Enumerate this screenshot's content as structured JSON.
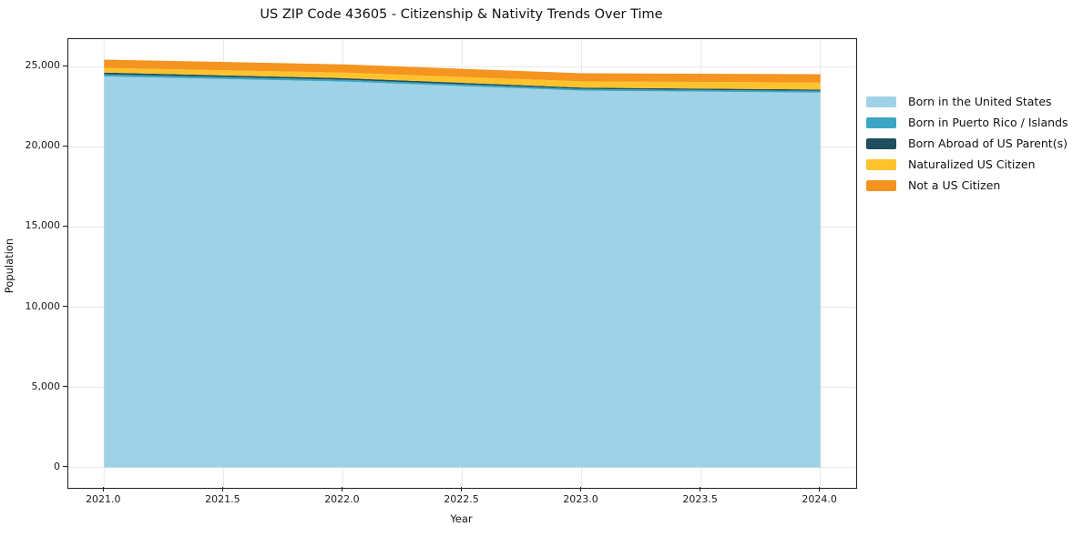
{
  "chart_data": {
    "type": "area",
    "stacked": true,
    "title": "US ZIP Code 43605 - Citizenship & Nativity Trends Over Time",
    "xlabel": "Year",
    "ylabel": "Population",
    "x": [
      2021,
      2022,
      2023,
      2024
    ],
    "series": [
      {
        "name": "Born in the United States",
        "color": "#9fd2e7",
        "values": [
          24400,
          24080,
          23510,
          23390
        ]
      },
      {
        "name": "Born in Puerto Rico / Islands",
        "color": "#3aa6c3",
        "values": [
          130,
          115,
          110,
          110
        ]
      },
      {
        "name": "Born Abroad of US Parent(s)",
        "color": "#1f4e5e",
        "values": [
          115,
          100,
          85,
          80
        ]
      },
      {
        "name": "Naturalized US Citizen",
        "color": "#fcc32d",
        "values": [
          290,
          345,
          385,
          440
        ]
      },
      {
        "name": "Not a US Citizen",
        "color": "#f5941f",
        "values": [
          515,
          515,
          510,
          520
        ]
      }
    ],
    "xlim": [
      2020.85,
      2024.15
    ],
    "ylim": [
      -1273,
      26727
    ],
    "xticks": {
      "values": [
        2021.0,
        2021.5,
        2022.0,
        2022.5,
        2023.0,
        2023.5,
        2024.0
      ],
      "labels": [
        "2021.0",
        "2021.5",
        "2022.0",
        "2022.5",
        "2023.0",
        "2023.5",
        "2024.0"
      ]
    },
    "yticks": {
      "values": [
        0,
        5000,
        10000,
        15000,
        20000,
        25000
      ],
      "labels": [
        "0",
        "5,000",
        "10,000",
        "15,000",
        "20,000",
        "25,000"
      ]
    },
    "grid": true,
    "grid_color": "#e8e8e8",
    "spine_color": "#1f1f1f",
    "legend_position": "right-outside"
  }
}
